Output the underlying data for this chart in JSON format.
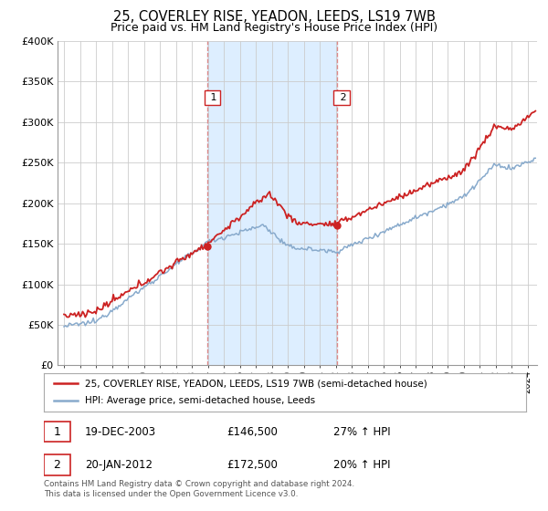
{
  "title": "25, COVERLEY RISE, YEADON, LEEDS, LS19 7WB",
  "subtitle": "Price paid vs. HM Land Registry's House Price Index (HPI)",
  "ylabel_ticks": [
    "£0",
    "£50K",
    "£100K",
    "£150K",
    "£200K",
    "£250K",
    "£300K",
    "£350K",
    "£400K"
  ],
  "ytick_values": [
    0,
    50000,
    100000,
    150000,
    200000,
    250000,
    300000,
    350000,
    400000
  ],
  "ylim": [
    0,
    400000
  ],
  "xlim_start": 1994.6,
  "xlim_end": 2024.6,
  "sale1_x": 2003.97,
  "sale1_y": 146500,
  "sale1_label": "1",
  "sale1_date": "19-DEC-2003",
  "sale1_price": "£146,500",
  "sale1_hpi": "27% ↑ HPI",
  "sale2_x": 2012.06,
  "sale2_y": 172500,
  "sale2_label": "2",
  "sale2_date": "20-JAN-2012",
  "sale2_price": "£172,500",
  "sale2_hpi": "20% ↑ HPI",
  "red_line_color": "#cc2222",
  "blue_line_color": "#88aacc",
  "shading_color": "#ddeeff",
  "dashed_line_color": "#dd8888",
  "legend_label_red": "25, COVERLEY RISE, YEADON, LEEDS, LS19 7WB (semi-detached house)",
  "legend_label_blue": "HPI: Average price, semi-detached house, Leeds",
  "footnote": "Contains HM Land Registry data © Crown copyright and database right 2024.\nThis data is licensed under the Open Government Licence v3.0.",
  "title_fontsize": 10.5,
  "subtitle_fontsize": 9,
  "background_color": "#ffffff"
}
